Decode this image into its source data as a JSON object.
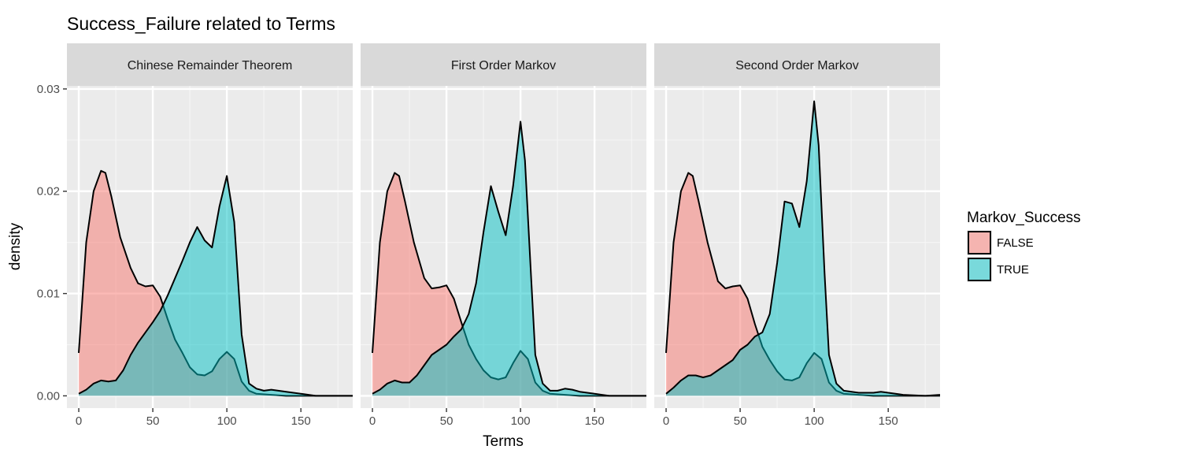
{
  "chart_data": {
    "type": "area",
    "title": "Success_Failure related to Terms",
    "xlabel": "Terms",
    "ylabel": "density",
    "xlim": [
      -8,
      185
    ],
    "ylim": [
      -0.0012,
      0.0303
    ],
    "x_ticks": [
      "0",
      "50",
      "100",
      "150"
    ],
    "x_tick_values": [
      0,
      50,
      100,
      150
    ],
    "y_ticks": [
      "0.00",
      "0.01",
      "0.02",
      "0.03"
    ],
    "y_tick_values": [
      0,
      0.01,
      0.02,
      0.03
    ],
    "grid": true,
    "legend": {
      "title": "Markov_Success",
      "position": "right",
      "entries": [
        {
          "label": "FALSE",
          "color": "#F8766D"
        },
        {
          "label": "TRUE",
          "color": "#00BFC4"
        }
      ]
    },
    "panels": [
      {
        "label": "Chinese Remainder Theorem",
        "series": [
          {
            "name": "FALSE",
            "color": "#F8766D",
            "x": [
              0,
              5,
              10,
              15,
              18,
              22,
              28,
              35,
              40,
              45,
              50,
              55,
              60,
              65,
              70,
              75,
              80,
              85,
              90,
              95,
              100,
              105,
              110,
              115,
              120,
              130,
              140,
              150,
              160,
              185
            ],
            "y": [
              0.0042,
              0.015,
              0.02,
              0.022,
              0.0218,
              0.0195,
              0.0155,
              0.0125,
              0.011,
              0.0107,
              0.0108,
              0.0097,
              0.0075,
              0.0055,
              0.0042,
              0.0028,
              0.0021,
              0.002,
              0.0024,
              0.0036,
              0.0043,
              0.0036,
              0.0014,
              0.0005,
              0.0002,
              0.0001,
              0.0,
              0.0,
              0.0,
              0.0
            ]
          },
          {
            "name": "TRUE",
            "color": "#00BFC4",
            "x": [
              0,
              5,
              10,
              15,
              20,
              25,
              30,
              35,
              40,
              45,
              50,
              55,
              60,
              65,
              70,
              75,
              80,
              85,
              90,
              95,
              100,
              105,
              110,
              115,
              120,
              125,
              130,
              140,
              150,
              160,
              185
            ],
            "y": [
              0.0002,
              0.0006,
              0.0012,
              0.0015,
              0.0014,
              0.0015,
              0.0025,
              0.004,
              0.0052,
              0.0062,
              0.0072,
              0.0083,
              0.0098,
              0.0115,
              0.0132,
              0.015,
              0.0165,
              0.0152,
              0.0145,
              0.0185,
              0.0215,
              0.017,
              0.006,
              0.0012,
              0.0007,
              0.0005,
              0.0006,
              0.0004,
              0.0002,
              0.0,
              0.0
            ]
          }
        ]
      },
      {
        "label": "First Order Markov",
        "series": [
          {
            "name": "FALSE",
            "color": "#F8766D",
            "x": [
              0,
              5,
              10,
              15,
              18,
              22,
              28,
              35,
              40,
              45,
              50,
              55,
              60,
              65,
              70,
              75,
              80,
              85,
              90,
              95,
              100,
              105,
              110,
              115,
              120,
              130,
              140,
              150,
              160,
              185
            ],
            "y": [
              0.0042,
              0.015,
              0.02,
              0.0218,
              0.0215,
              0.019,
              0.015,
              0.0115,
              0.0105,
              0.0106,
              0.0108,
              0.0095,
              0.0072,
              0.005,
              0.0036,
              0.0025,
              0.0018,
              0.0016,
              0.0018,
              0.0032,
              0.0044,
              0.0036,
              0.0013,
              0.0005,
              0.0002,
              0.0001,
              0.0,
              0.0,
              0.0,
              0.0
            ]
          },
          {
            "name": "TRUE",
            "color": "#00BFC4",
            "x": [
              0,
              5,
              10,
              15,
              20,
              25,
              30,
              35,
              40,
              45,
              50,
              55,
              60,
              65,
              70,
              75,
              80,
              85,
              90,
              95,
              100,
              103,
              107,
              110,
              115,
              120,
              125,
              130,
              135,
              140,
              150,
              160,
              185
            ],
            "y": [
              0.0002,
              0.0006,
              0.0012,
              0.0015,
              0.0013,
              0.0013,
              0.002,
              0.003,
              0.004,
              0.0045,
              0.005,
              0.0058,
              0.0065,
              0.008,
              0.011,
              0.016,
              0.0205,
              0.018,
              0.0157,
              0.0205,
              0.0268,
              0.023,
              0.012,
              0.004,
              0.0012,
              0.0005,
              0.0005,
              0.0007,
              0.0006,
              0.0004,
              0.0002,
              0.0,
              0.0
            ]
          }
        ]
      },
      {
        "label": "Second Order Markov",
        "series": [
          {
            "name": "FALSE",
            "color": "#F8766D",
            "x": [
              0,
              5,
              10,
              15,
              18,
              22,
              28,
              35,
              40,
              45,
              50,
              55,
              60,
              65,
              70,
              75,
              80,
              85,
              90,
              95,
              100,
              105,
              110,
              115,
              120,
              130,
              140,
              150,
              160,
              185
            ],
            "y": [
              0.0042,
              0.015,
              0.02,
              0.0218,
              0.0215,
              0.019,
              0.015,
              0.0112,
              0.0105,
              0.0107,
              0.0108,
              0.0095,
              0.007,
              0.0048,
              0.0035,
              0.0024,
              0.0016,
              0.0015,
              0.0018,
              0.0032,
              0.0042,
              0.0036,
              0.0013,
              0.0005,
              0.0002,
              0.0001,
              0.0,
              0.0,
              0.0,
              0.0
            ]
          },
          {
            "name": "TRUE",
            "color": "#00BFC4",
            "x": [
              0,
              5,
              10,
              15,
              20,
              25,
              30,
              35,
              40,
              45,
              50,
              55,
              60,
              65,
              70,
              75,
              80,
              85,
              90,
              95,
              100,
              103,
              107,
              110,
              115,
              120,
              130,
              140,
              145,
              150,
              160,
              175,
              185
            ],
            "y": [
              0.0002,
              0.0008,
              0.0015,
              0.002,
              0.002,
              0.0018,
              0.002,
              0.0025,
              0.003,
              0.0035,
              0.0045,
              0.005,
              0.0058,
              0.0062,
              0.008,
              0.013,
              0.019,
              0.0188,
              0.0165,
              0.021,
              0.0288,
              0.0245,
              0.012,
              0.004,
              0.0012,
              0.0005,
              0.0003,
              0.0003,
              0.0004,
              0.0003,
              0.0001,
              0.0,
              0.0001
            ]
          }
        ]
      }
    ]
  }
}
